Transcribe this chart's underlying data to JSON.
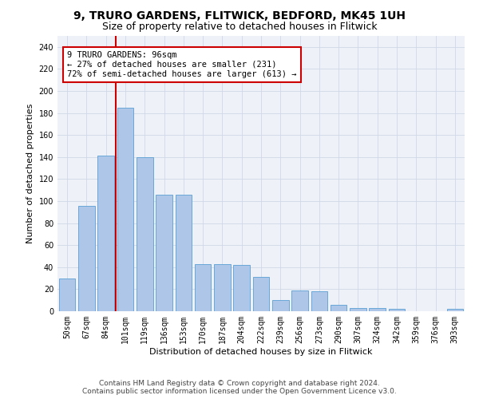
{
  "title_line1": "9, TRURO GARDENS, FLITWICK, BEDFORD, MK45 1UH",
  "title_line2": "Size of property relative to detached houses in Flitwick",
  "xlabel": "Distribution of detached houses by size in Flitwick",
  "ylabel": "Number of detached properties",
  "bar_labels": [
    "50sqm",
    "67sqm",
    "84sqm",
    "101sqm",
    "119sqm",
    "136sqm",
    "153sqm",
    "170sqm",
    "187sqm",
    "204sqm",
    "222sqm",
    "239sqm",
    "256sqm",
    "273sqm",
    "290sqm",
    "307sqm",
    "324sqm",
    "342sqm",
    "359sqm",
    "376sqm",
    "393sqm"
  ],
  "bar_values": [
    30,
    96,
    141,
    185,
    140,
    106,
    106,
    43,
    43,
    42,
    31,
    10,
    19,
    18,
    6,
    3,
    3,
    2,
    0,
    0,
    2
  ],
  "bar_color": "#aec6e8",
  "bar_edge_color": "#5a9fd4",
  "vline_color": "#cc0000",
  "annotation_box_text": "9 TRURO GARDENS: 96sqm\n← 27% of detached houses are smaller (231)\n72% of semi-detached houses are larger (613) →",
  "annotation_box_color": "#cc0000",
  "annotation_box_fill": "#ffffff",
  "ylim": [
    0,
    250
  ],
  "yticks": [
    0,
    20,
    40,
    60,
    80,
    100,
    120,
    140,
    160,
    180,
    200,
    220,
    240
  ],
  "grid_color": "#d0d8e8",
  "background_color": "#eef2f8",
  "footer_line1": "Contains HM Land Registry data © Crown copyright and database right 2024.",
  "footer_line2": "Contains public sector information licensed under the Open Government Licence v3.0.",
  "title_fontsize": 10,
  "subtitle_fontsize": 9,
  "axis_label_fontsize": 8,
  "tick_fontsize": 7,
  "annotation_fontsize": 7.5,
  "footer_fontsize": 6.5
}
